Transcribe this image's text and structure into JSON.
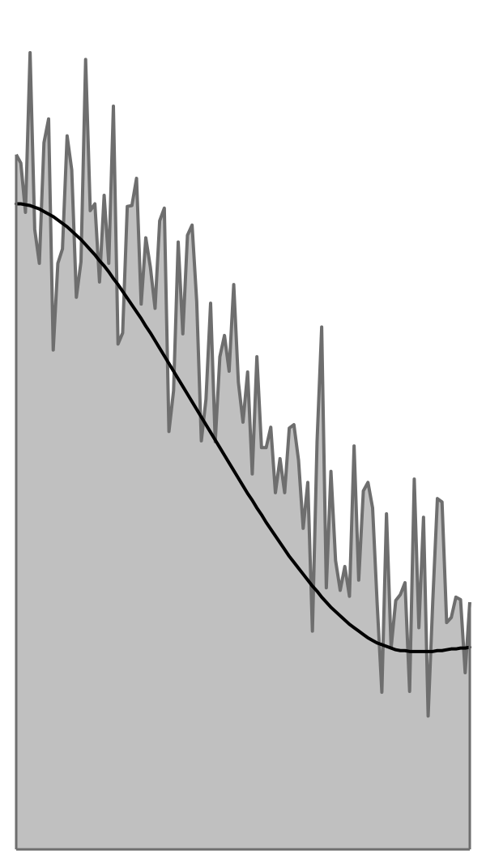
{
  "chart_data": {
    "type": "area",
    "title": "",
    "xlabel": "",
    "ylabel": "",
    "xlim": [
      0,
      98
    ],
    "ylim": [
      0,
      1000
    ],
    "grid": false,
    "legend": "none",
    "x": [
      0,
      1,
      2,
      3,
      4,
      5,
      6,
      7,
      8,
      9,
      10,
      11,
      12,
      13,
      14,
      15,
      16,
      17,
      18,
      19,
      20,
      21,
      22,
      23,
      24,
      25,
      26,
      27,
      28,
      29,
      30,
      31,
      32,
      33,
      34,
      35,
      36,
      37,
      38,
      39,
      40,
      41,
      42,
      43,
      44,
      45,
      46,
      47,
      48,
      49,
      50,
      51,
      52,
      53,
      54,
      55,
      56,
      57,
      58,
      59,
      60,
      61,
      62,
      63,
      64,
      65,
      66,
      67,
      68,
      69,
      70,
      71,
      72,
      73,
      74,
      75,
      76,
      77,
      78,
      79,
      80,
      81,
      82,
      83,
      84,
      85,
      86,
      87,
      88,
      89,
      90,
      91,
      92,
      93,
      94,
      95,
      96,
      97,
      98
    ],
    "series": [
      {
        "style": "noisy-area",
        "values": [
          818,
          808,
          750,
          938,
          730,
          690,
          832,
          860,
          588,
          690,
          707,
          840,
          800,
          650,
          692,
          930,
          752,
          760,
          668,
          770,
          690,
          875,
          595,
          608,
          757,
          758,
          790,
          642,
          720,
          685,
          637,
          740,
          755,
          492,
          540,
          715,
          607,
          723,
          735,
          645,
          481,
          530,
          643,
          480,
          580,
          605,
          563,
          665,
          550,
          503,
          562,
          442,
          580,
          473,
          473,
          497,
          420,
          460,
          420,
          496,
          500,
          458,
          378,
          432,
          257,
          480,
          615,
          308,
          445,
          340,
          305,
          333,
          298,
          475,
          317,
          422,
          432,
          402,
          288,
          185,
          395,
          237,
          293,
          300,
          314,
          186,
          436,
          261,
          391,
          157,
          292,
          413,
          409,
          267,
          273,
          297,
          294,
          208,
          291
        ],
        "color": "#6e6e6e",
        "fill": "#c0c0c0"
      },
      {
        "style": "smooth-trend",
        "values": [
          760,
          760,
          759,
          758,
          756,
          754,
          751,
          748,
          745,
          741,
          737,
          733,
          728,
          723,
          718,
          712,
          706,
          700,
          693,
          687,
          680,
          672,
          665,
          657,
          649,
          641,
          633,
          625,
          616,
          608,
          599,
          590,
          581,
          572,
          563,
          554,
          545,
          536,
          527,
          518,
          509,
          500,
          491,
          482,
          473,
          464,
          455,
          446,
          437,
          428,
          419,
          411,
          402,
          394,
          385,
          377,
          369,
          361,
          353,
          345,
          338,
          331,
          324,
          317,
          310,
          304,
          297,
          291,
          285,
          280,
          275,
          270,
          265,
          261,
          257,
          253,
          249,
          246,
          243,
          241,
          239,
          237,
          235,
          234,
          234,
          233,
          233,
          233,
          233,
          233,
          233,
          234,
          234,
          235,
          236,
          236,
          237,
          237,
          238
        ],
        "color": "#000000"
      }
    ]
  }
}
